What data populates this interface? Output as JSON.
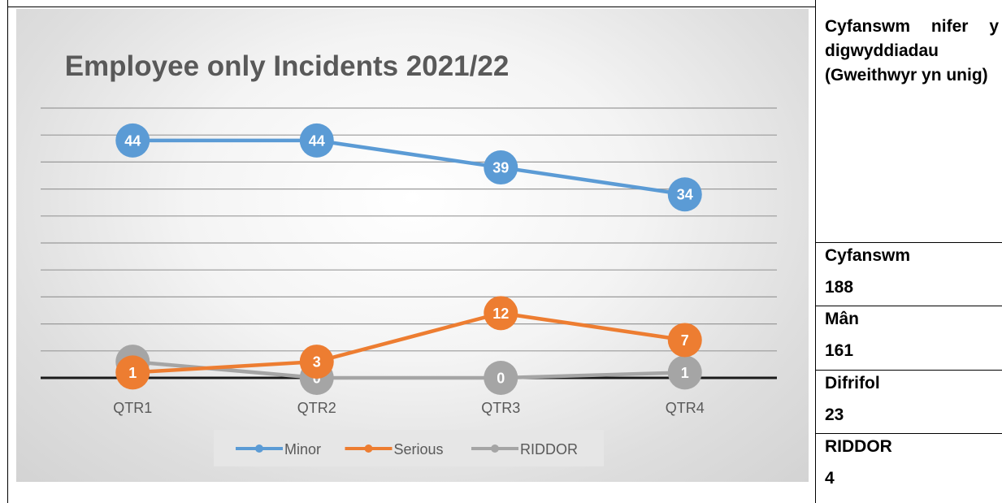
{
  "chart_data": {
    "type": "line",
    "title": "Employee only Incidents 2021/22",
    "categories": [
      "QTR1",
      "QTR2",
      "QTR3",
      "QTR4"
    ],
    "series": [
      {
        "name": "Minor",
        "values": [
          44,
          44,
          39,
          34
        ],
        "color": "#5b9bd5"
      },
      {
        "name": "Serious",
        "values": [
          1,
          3,
          12,
          7
        ],
        "color": "#ed7d31"
      },
      {
        "name": "RIDDOR",
        "values": [
          3,
          0,
          0,
          1
        ],
        "color": "#a5a5a5"
      }
    ],
    "ylim": [
      0,
      50
    ],
    "grid": true,
    "legend": "bottom",
    "data_labels": true
  },
  "side_table": {
    "heading": "Cyfanswm nifer y digwyddiadau (Gweithwyr yn unig)",
    "rows": [
      {
        "label": "Cyfanswm",
        "value": "188"
      },
      {
        "label": "Mân",
        "value": "161"
      },
      {
        "label": "Difrifol",
        "value": "23"
      },
      {
        "label": "RIDDOR",
        "value": "4"
      }
    ]
  }
}
